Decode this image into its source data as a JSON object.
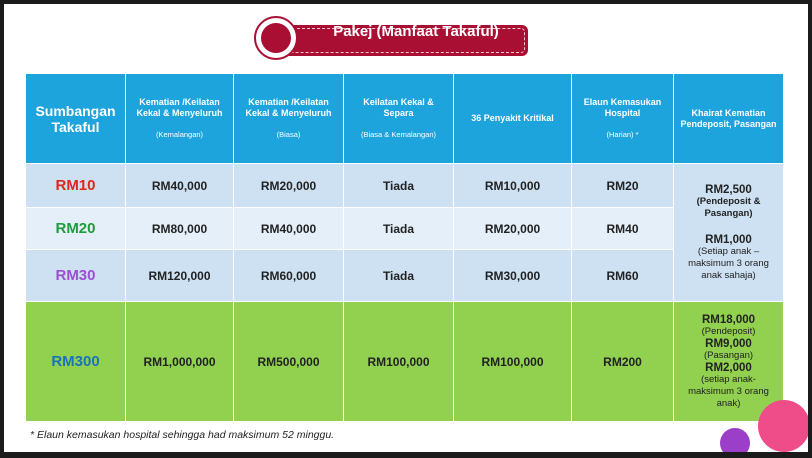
{
  "title": "Pakej (Manfaat Takaful)",
  "colors": {
    "red_plan": "#e0261c",
    "green_plan": "#1a9e3c",
    "purple_plan": "#9b4fd0",
    "blue_plan": "#1b73b8",
    "badge": "#a90f32",
    "header": "#1ea4dc"
  },
  "header": {
    "col0": "Sumbangan Takaful",
    "col1": "Kematian /Keilatan Kekal & Menyeluruh",
    "col1_sub": "(Kemalangan)",
    "col2": "Kematian /Keilatan Kekal & Menyeluruh",
    "col2_sub": "(Biasa)",
    "col3": "Keilatan Kekal & Separa",
    "col3_sub": "(Biasa & Kemalangan)",
    "col4": "36 Penyakit Kritikal",
    "col5": "Elaun Kemasukan Hospital",
    "col5_sub": "(Harian) *",
    "col6": "Khairat Kematian Pendeposit, Pasangan"
  },
  "rows": [
    {
      "plan": "RM10",
      "c1": "RM40,000",
      "c2": "RM20,000",
      "c3": "Tiada",
      "c4": "RM10,000",
      "c5": "RM20"
    },
    {
      "plan": "RM20",
      "c1": "RM80,000",
      "c2": "RM40,000",
      "c3": "Tiada",
      "c4": "RM20,000",
      "c5": "RM40"
    },
    {
      "plan": "RM30",
      "c1": "RM120,000",
      "c2": "RM60,000",
      "c3": "Tiada",
      "c4": "RM30,000",
      "c5": "RM60"
    },
    {
      "plan": "RM300",
      "c1": "RM1,000,000",
      "c2": "RM500,000",
      "c3": "RM100,000",
      "c4": "RM100,000",
      "c5": "RM200"
    }
  ],
  "khairat_small": {
    "amount1": "RM2,500",
    "note1": "(Pendeposit & Pasangan)",
    "amount2": "RM1,000",
    "note2": "(Setiap anak – maksimum 3 orang anak sahaja)"
  },
  "khairat_large": {
    "amount1": "RM18,000",
    "note1": "(Pendeposit)",
    "amount2": "RM9,000",
    "note2": "(Pasangan)",
    "amount3": "RM2,000",
    "note3": "(setiap anak- maksimum 3 orang anak)"
  },
  "footnote": "* Elaun kemasukan hospital sehingga had maksimum 52 minggu."
}
